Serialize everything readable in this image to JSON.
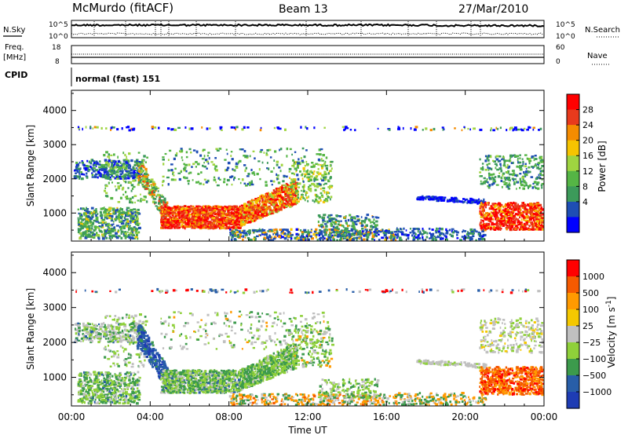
{
  "header": {
    "station": "McMurdo (fitACF)",
    "beam": "Beam 13",
    "date": "27/Mar/2010"
  },
  "noise_panel": {
    "left_label": "N.Sky",
    "left_ticks": [
      "10^5",
      "10^0"
    ],
    "right_ticks": [
      "10^5",
      "10^0"
    ],
    "right_label": "N.Search"
  },
  "freq_panel": {
    "left_label_1": "Freq.",
    "left_label_2": "[MHz]",
    "left_ticks": [
      "18",
      "8"
    ],
    "right_ticks": [
      "60",
      "0"
    ],
    "right_label": "Nave"
  },
  "cpid_panel": {
    "label": "CPID",
    "text": "normal (fast) 151"
  },
  "colors": {
    "power": [
      "#0000ff",
      "#1e4eb4",
      "#3c9a5a",
      "#55b545",
      "#9fd440",
      "#f6c400",
      "#f58c00",
      "#e83a1c",
      "#ff0000"
    ],
    "velocity": [
      "#ff0000",
      "#f55a00",
      "#ff9a00",
      "#f5c800",
      "#c0c0c0",
      "#8fd03a",
      "#3c9a4c",
      "#285ea8",
      "#1e3cb4"
    ]
  },
  "chart_data": [
    {
      "type": "heatmap",
      "title": "",
      "xlabel": "Time UT",
      "ylabel": "Slant Range [km]",
      "x_ticks": [
        "00:00",
        "04:00",
        "08:00",
        "12:00",
        "16:00",
        "20:00",
        "00:00"
      ],
      "x_range_hours": [
        0,
        24
      ],
      "y_ticks": [
        "1000",
        "2000",
        "3000",
        "4000"
      ],
      "y_range_km": [
        180,
        4590
      ],
      "colorbar": {
        "label": "Power [dB]",
        "ticks": [
          "4",
          "8",
          "12",
          "16",
          "20",
          "24",
          "28"
        ],
        "range": [
          0,
          30
        ]
      }
    },
    {
      "type": "heatmap",
      "title": "",
      "xlabel": "Time UT",
      "ylabel": "Slant Range [km]",
      "x_ticks": [
        "00:00",
        "04:00",
        "08:00",
        "12:00",
        "16:00",
        "20:00",
        "00:00"
      ],
      "x_range_hours": [
        0,
        24
      ],
      "y_ticks": [
        "1000",
        "2000",
        "3000",
        "4000"
      ],
      "y_range_km": [
        180,
        4590
      ],
      "colorbar": {
        "label": "Velocity [m s^-1]",
        "ticks": [
          "1000",
          "500",
          "100",
          "25",
          "−25",
          "−100",
          "−500",
          "−1000"
        ],
        "range": [
          -1000,
          1000
        ]
      }
    }
  ]
}
